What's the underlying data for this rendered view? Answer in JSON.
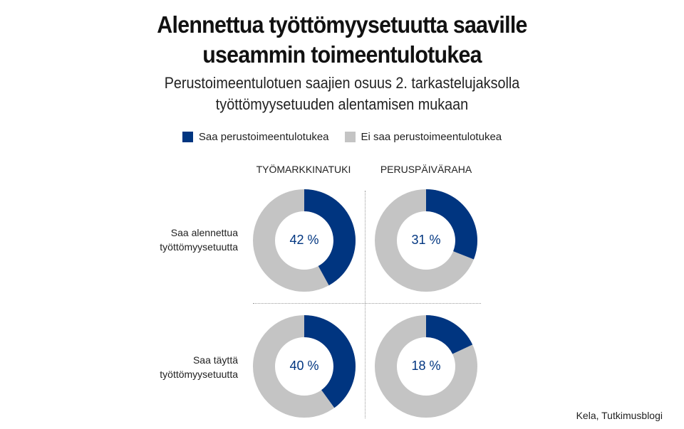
{
  "title": [
    "Alennettua työttömyysetuutta saaville",
    "useammin toimeentulotukea"
  ],
  "subtitle": [
    "Perustoimeentulotuen saajien osuus 2. tarkastelujaksolla",
    "työttömyysetuuden alentamisen mukaan"
  ],
  "colors": {
    "primary": "#003580",
    "secondary": "#c4c4c4"
  },
  "source": "Kela, Tutkimusblogi",
  "chart_data": {
    "type": "pie",
    "legend": [
      "Saa perustoimeentulotukea",
      "Ei saa perustoimeentulotukea"
    ],
    "legend_placement": "top",
    "columns": [
      "TYÖMARKKINATUKI",
      "PERUSPÄIVÄRAHA"
    ],
    "rows": [
      [
        "Saa alennettua",
        "työttömyysetuutta"
      ],
      [
        "Saa täyttä",
        "työttömyysetuutta"
      ]
    ],
    "cells": [
      {
        "row": 0,
        "col": 0,
        "value": 42,
        "label": "42 %"
      },
      {
        "row": 0,
        "col": 1,
        "value": 31,
        "label": "31 %"
      },
      {
        "row": 1,
        "col": 0,
        "value": 40,
        "label": "40 %"
      },
      {
        "row": 1,
        "col": 1,
        "value": 18,
        "label": "18 %"
      }
    ],
    "unit": "%"
  }
}
